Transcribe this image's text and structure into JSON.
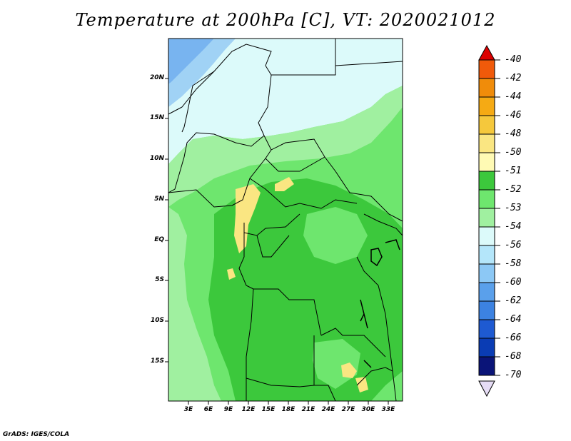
{
  "title": "Temperature at 200hPa [C], VT: 2020021012",
  "credit": "GrADS: IGES/COLA",
  "lat_labels": [
    "20N",
    "15N",
    "10N",
    "5N",
    "EQ",
    "5S",
    "10S",
    "15S"
  ],
  "lon_labels": [
    "3E",
    "6E",
    "9E",
    "12E",
    "15E",
    "18E",
    "21E",
    "24E",
    "27E",
    "30E",
    "33E"
  ],
  "colorbar": {
    "labels": [
      "-40",
      "-42",
      "-44",
      "-46",
      "-48",
      "-50",
      "-51",
      "-52",
      "-53",
      "-54",
      "-56",
      "-58",
      "-60",
      "-62",
      "-64",
      "-66",
      "-68",
      "-70"
    ],
    "colors": [
      "#f01e0a",
      "#f05a0a",
      "#f08c0a",
      "#f5aa14",
      "#f5c83c",
      "#fae682",
      "#fffab4",
      "#3cc83c",
      "#6ee66e",
      "#a0f0a0",
      "#dcfafa",
      "#b4e6fa",
      "#8cc8f5",
      "#5aa0eb",
      "#3c82e1",
      "#1e5ad2",
      "#0a3cb4",
      "#0a1478"
    ],
    "top_arrow_color": "#dc0000",
    "bottom_arrow_color": "#e6dcf5"
  },
  "map_colors": {
    "cold_blue": "#78b4f0",
    "light_blue": "#a0d2f5",
    "pale_cyan": "#dcfafa",
    "light_green": "#a0f0a0",
    "mid_green": "#6ee66e",
    "dark_green": "#3cc83c",
    "pale_yellow": "#fae682"
  }
}
